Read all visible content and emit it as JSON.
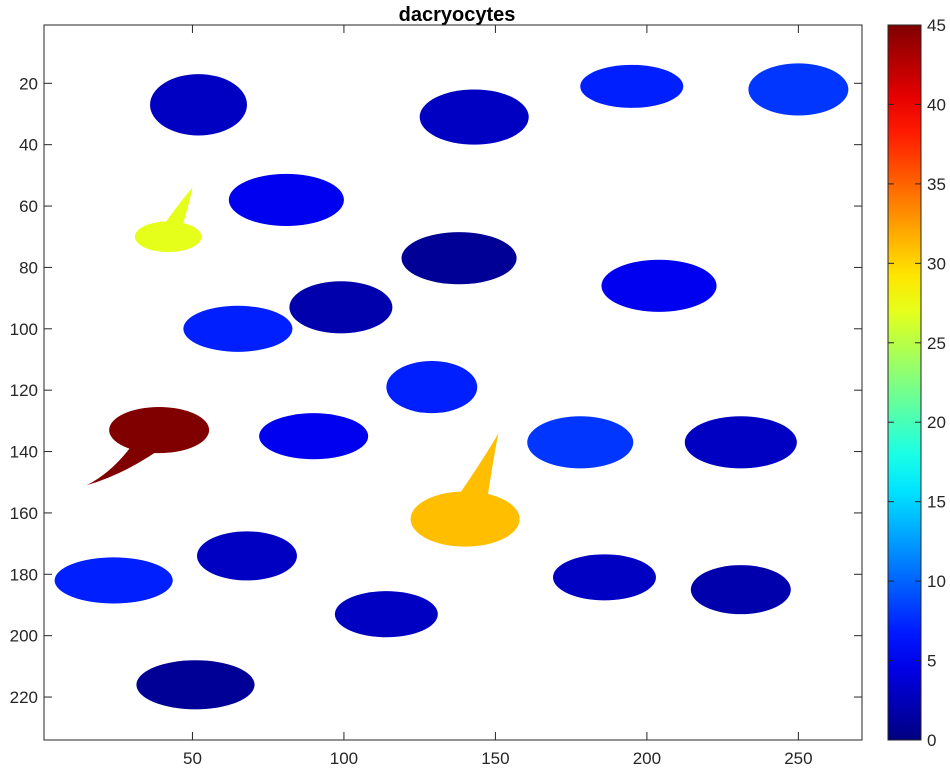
{
  "chart_data": {
    "type": "heatmap",
    "title": "dacryocytes",
    "xlabel": "",
    "ylabel": "",
    "xlim": [
      1,
      271
    ],
    "ylim": [
      1,
      234
    ],
    "y_reversed": true,
    "x_ticks": [
      50,
      100,
      150,
      200,
      250
    ],
    "y_ticks": [
      20,
      40,
      60,
      80,
      100,
      120,
      140,
      160,
      180,
      200,
      220
    ],
    "colormap": "jet",
    "clim": [
      0,
      45
    ],
    "colorbar_ticks": [
      0,
      5,
      10,
      15,
      20,
      25,
      30,
      35,
      40,
      45
    ],
    "background": "#ffffff",
    "cells": [
      {
        "cx": 52,
        "cy": 27,
        "rx": 32,
        "ry": 20,
        "value": 3,
        "shape": "round"
      },
      {
        "cx": 143,
        "cy": 31,
        "rx": 36,
        "ry": 18,
        "value": 3,
        "shape": "round"
      },
      {
        "cx": 195,
        "cy": 21,
        "rx": 34,
        "ry": 14,
        "value": 7,
        "shape": "round"
      },
      {
        "cx": 250,
        "cy": 22,
        "rx": 33,
        "ry": 17,
        "value": 8,
        "shape": "round"
      },
      {
        "cx": 81,
        "cy": 58,
        "rx": 38,
        "ry": 17,
        "value": 5,
        "shape": "round"
      },
      {
        "cx": 138,
        "cy": 77,
        "rx": 38,
        "ry": 17,
        "value": 1,
        "shape": "round"
      },
      {
        "cx": 204,
        "cy": 86,
        "rx": 38,
        "ry": 17,
        "value": 5,
        "shape": "round"
      },
      {
        "cx": 99,
        "cy": 93,
        "rx": 34,
        "ry": 17,
        "value": 2,
        "shape": "round"
      },
      {
        "cx": 65,
        "cy": 100,
        "rx": 36,
        "ry": 15,
        "value": 7,
        "shape": "round"
      },
      {
        "cx": 129,
        "cy": 119,
        "rx": 30,
        "ry": 17,
        "value": 7,
        "shape": "round"
      },
      {
        "cx": 178,
        "cy": 137,
        "rx": 35,
        "ry": 17,
        "value": 8,
        "shape": "round"
      },
      {
        "cx": 90,
        "cy": 135,
        "rx": 36,
        "ry": 15,
        "value": 5,
        "shape": "round"
      },
      {
        "cx": 231,
        "cy": 137,
        "rx": 37,
        "ry": 17,
        "value": 3,
        "shape": "round"
      },
      {
        "cx": 68,
        "cy": 174,
        "rx": 33,
        "ry": 16,
        "value": 3,
        "shape": "round"
      },
      {
        "cx": 186,
        "cy": 181,
        "rx": 34,
        "ry": 15,
        "value": 3,
        "shape": "round"
      },
      {
        "cx": 231,
        "cy": 185,
        "rx": 33,
        "ry": 16,
        "value": 2,
        "shape": "round"
      },
      {
        "cx": 24,
        "cy": 182,
        "rx": 39,
        "ry": 15,
        "value": 7,
        "shape": "round"
      },
      {
        "cx": 114,
        "cy": 193,
        "rx": 34,
        "ry": 15,
        "value": 3,
        "shape": "round"
      },
      {
        "cx": 51,
        "cy": 216,
        "rx": 39,
        "ry": 16,
        "value": 1,
        "shape": "round"
      },
      {
        "cx": 42,
        "cy": 70,
        "rx": 22,
        "ry": 10,
        "value": 27,
        "shape": "tear",
        "tail": [
          [
            48,
            58
          ],
          [
            50,
            54
          ]
        ]
      },
      {
        "cx": 39,
        "cy": 133,
        "rx": 33,
        "ry": 15,
        "value": 45,
        "shape": "tear",
        "tail": [
          [
            28,
            146
          ],
          [
            15,
            151
          ]
        ]
      },
      {
        "cx": 140,
        "cy": 162,
        "rx": 36,
        "ry": 18,
        "value": 31,
        "shape": "tear",
        "tail": [
          [
            148,
            142
          ],
          [
            151,
            134
          ]
        ]
      }
    ]
  }
}
